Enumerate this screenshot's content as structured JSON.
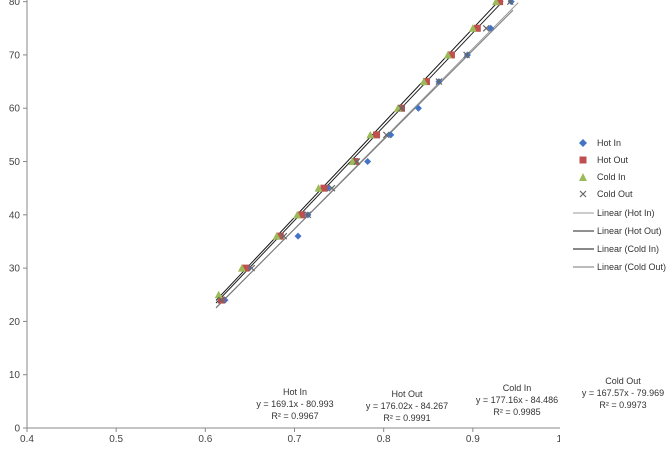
{
  "chart_data": {
    "type": "scatter",
    "title": "",
    "xlabel": "",
    "ylabel": "",
    "xlim": [
      0.4,
      1.0
    ],
    "ylim": [
      0,
      85
    ],
    "x_ticks": [
      "0.4",
      "0.5",
      "0.6",
      "0.7",
      "0.8",
      "0.9",
      "1"
    ],
    "y_ticks": [
      "0",
      "10",
      "20",
      "30",
      "40",
      "50",
      "60",
      "70",
      "80"
    ],
    "grid": false,
    "legend_position": "right",
    "series": [
      {
        "name": "Hot In",
        "marker": "diamond",
        "color": "#4472c4",
        "points": [
          [
            0.622,
            24
          ],
          [
            0.649,
            30
          ],
          [
            0.704,
            36
          ],
          [
            0.715,
            40
          ],
          [
            0.737,
            45
          ],
          [
            0.782,
            50
          ],
          [
            0.808,
            55
          ],
          [
            0.839,
            60
          ],
          [
            0.862,
            65
          ],
          [
            0.894,
            70
          ],
          [
            0.92,
            75
          ],
          [
            0.943,
            80
          ]
        ]
      },
      {
        "name": "Hot Out",
        "marker": "square",
        "color": "#c0504d",
        "points": [
          [
            0.618,
            24
          ],
          [
            0.645,
            30
          ],
          [
            0.684,
            36
          ],
          [
            0.708,
            40
          ],
          [
            0.733,
            45
          ],
          [
            0.768,
            50
          ],
          [
            0.792,
            55
          ],
          [
            0.82,
            60
          ],
          [
            0.848,
            65
          ],
          [
            0.876,
            70
          ],
          [
            0.905,
            75
          ],
          [
            0.93,
            80
          ]
        ]
      },
      {
        "name": "Cold In",
        "marker": "triangle",
        "color": "#9bbb59",
        "points": [
          [
            0.615,
            25
          ],
          [
            0.641,
            30
          ],
          [
            0.68,
            36
          ],
          [
            0.703,
            40
          ],
          [
            0.727,
            45
          ],
          [
            0.765,
            50
          ],
          [
            0.785,
            55
          ],
          [
            0.816,
            60
          ],
          [
            0.845,
            65
          ],
          [
            0.872,
            70
          ],
          [
            0.9,
            75
          ],
          [
            0.926,
            80
          ]
        ]
      },
      {
        "name": "Cold Out",
        "marker": "x",
        "color": "#666666",
        "points": [
          [
            0.618,
            24
          ],
          [
            0.652,
            30
          ],
          [
            0.688,
            36
          ],
          [
            0.715,
            40
          ],
          [
            0.742,
            45
          ],
          [
            0.77,
            50
          ],
          [
            0.803,
            55
          ],
          [
            0.82,
            60
          ],
          [
            0.862,
            65
          ],
          [
            0.893,
            70
          ],
          [
            0.915,
            75
          ],
          [
            0.942,
            80
          ]
        ]
      }
    ],
    "trendlines": [
      {
        "name": "Linear (Hot In)",
        "slope": 169.1,
        "intercept": -80.993,
        "color": "#9a9a9a",
        "x_range": [
          0.612,
          0.951
        ]
      },
      {
        "name": "Linear (Hot Out)",
        "slope": 176.02,
        "intercept": -84.267,
        "color": "#222222",
        "x_range": [
          0.612,
          0.934
        ]
      },
      {
        "name": "Linear (Cold In)",
        "slope": 177.16,
        "intercept": -84.486,
        "color": "#111111",
        "x_range": [
          0.612,
          0.928
        ]
      },
      {
        "name": "Linear (Cold Out)",
        "slope": 167.57,
        "intercept": -79.969,
        "color": "#777777",
        "x_range": [
          0.612,
          0.945
        ]
      }
    ],
    "equations": [
      {
        "title": "Hot In",
        "formula": "y = 169.1x - 80.993",
        "r2": "R² = 0.9967"
      },
      {
        "title": "Hot Out",
        "formula": "y = 176.02x - 84.267",
        "r2": "R² = 0.9991"
      },
      {
        "title": "Cold In",
        "formula": "y = 177.16x - 84.486",
        "r2": "R² = 0.9985"
      },
      {
        "title": "Cold Out",
        "formula": "y = 167.57x - 79.969",
        "r2": "R² = 0.9973"
      }
    ]
  }
}
